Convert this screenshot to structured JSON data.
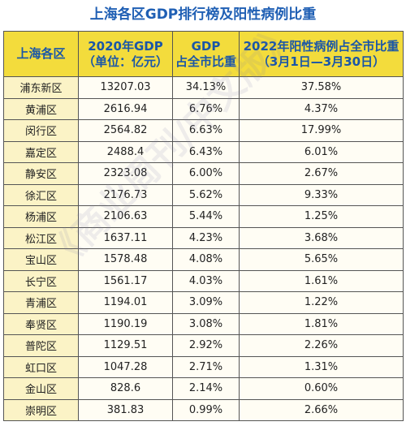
{
  "title": "上海各区GDP排行榜及阳性病例比重",
  "watermark": "《商业周刊/中文版》",
  "table": {
    "header": [
      [
        "上海各区"
      ],
      [
        "2020年GDP",
        "（单位：亿元）"
      ],
      [
        "GDP",
        "占全市比重"
      ],
      [
        "2022年阳性病例占全市比重",
        "（3月1日—3月30日）"
      ]
    ],
    "rows": [
      [
        "浦东新区",
        "13207.03",
        "34.13%",
        "37.58%"
      ],
      [
        "黄浦区",
        "2616.94",
        "6.76%",
        "4.37%"
      ],
      [
        "闵行区",
        "2564.82",
        "6.63%",
        "17.99%"
      ],
      [
        "嘉定区",
        "2488.4",
        "6.43%",
        "6.01%"
      ],
      [
        "静安区",
        "2323.08",
        "6.00%",
        "2.67%"
      ],
      [
        "徐汇区",
        "2176.73",
        "5.62%",
        "9.33%"
      ],
      [
        "杨浦区",
        "2106.63",
        "5.44%",
        "1.25%"
      ],
      [
        "松江区",
        "1637.11",
        "4.23%",
        "3.68%"
      ],
      [
        "宝山区",
        "1578.48",
        "4.08%",
        "5.65%"
      ],
      [
        "长宁区",
        "1561.17",
        "4.03%",
        "1.61%"
      ],
      [
        "青浦区",
        "1194.01",
        "3.09%",
        "1.22%"
      ],
      [
        "奉贤区",
        "1190.19",
        "3.08%",
        "1.81%"
      ],
      [
        "普陀区",
        "1129.51",
        "2.92%",
        "2.26%"
      ],
      [
        "虹口区",
        "1047.28",
        "2.71%",
        "1.31%"
      ],
      [
        "金山区",
        "828.6",
        "2.14%",
        "0.60%"
      ],
      [
        "崇明区",
        "381.83",
        "0.99%",
        "2.66%"
      ]
    ]
  }
}
